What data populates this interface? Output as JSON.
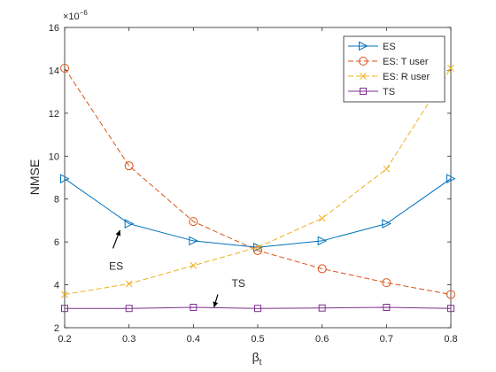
{
  "chart_data": {
    "type": "line",
    "title": "",
    "xlabel": "β",
    "xlabel_subscript": "t",
    "ylabel": "NMSE",
    "y_exponent": "×10",
    "y_exponent_power": "−6",
    "xlim": [
      0.2,
      0.8
    ],
    "ylim": [
      2,
      16
    ],
    "x": [
      0.2,
      0.3,
      0.4,
      0.5,
      0.6,
      0.7,
      0.8
    ],
    "x_tick_labels": [
      "0.2",
      "0.3",
      "0.4",
      "0.5",
      "0.6",
      "0.7",
      "0.8"
    ],
    "y_ticks": [
      2,
      4,
      6,
      8,
      10,
      12,
      14,
      16
    ],
    "y_tick_labels": [
      "2",
      "4",
      "6",
      "8",
      "10",
      "12",
      "14",
      "16"
    ],
    "grid": false,
    "legend_position": "top-right",
    "series": [
      {
        "name": "ES",
        "color": "#0072BD",
        "dash": "solid",
        "marker": "triangle-right",
        "values": [
          8.95,
          6.85,
          6.05,
          5.75,
          6.05,
          6.85,
          8.95
        ]
      },
      {
        "name": "ES: T user",
        "color": "#D95319",
        "dash": "dashed",
        "marker": "circle",
        "values": [
          14.1,
          9.55,
          6.95,
          5.6,
          4.75,
          4.1,
          3.55
        ]
      },
      {
        "name": "ES: R user",
        "color": "#EDB120",
        "dash": "dashed",
        "marker": "x",
        "values": [
          3.55,
          4.05,
          4.9,
          5.75,
          7.1,
          9.4,
          14.1
        ]
      },
      {
        "name": "TS",
        "color": "#7E2F8E",
        "dash": "solid",
        "marker": "square",
        "values": [
          2.9,
          2.9,
          2.95,
          2.9,
          2.92,
          2.95,
          2.9
        ]
      }
    ],
    "annotations": [
      {
        "text": "ES",
        "label_x": 0.28,
        "label_y": 4.7,
        "arrow_from": [
          0.275,
          5.7
        ],
        "arrow_to": [
          0.286,
          6.55
        ]
      },
      {
        "text": "TS",
        "label_x": 0.47,
        "label_y": 3.9,
        "arrow_from": [
          0.438,
          3.55
        ],
        "arrow_to": [
          0.432,
          2.95
        ]
      }
    ]
  }
}
